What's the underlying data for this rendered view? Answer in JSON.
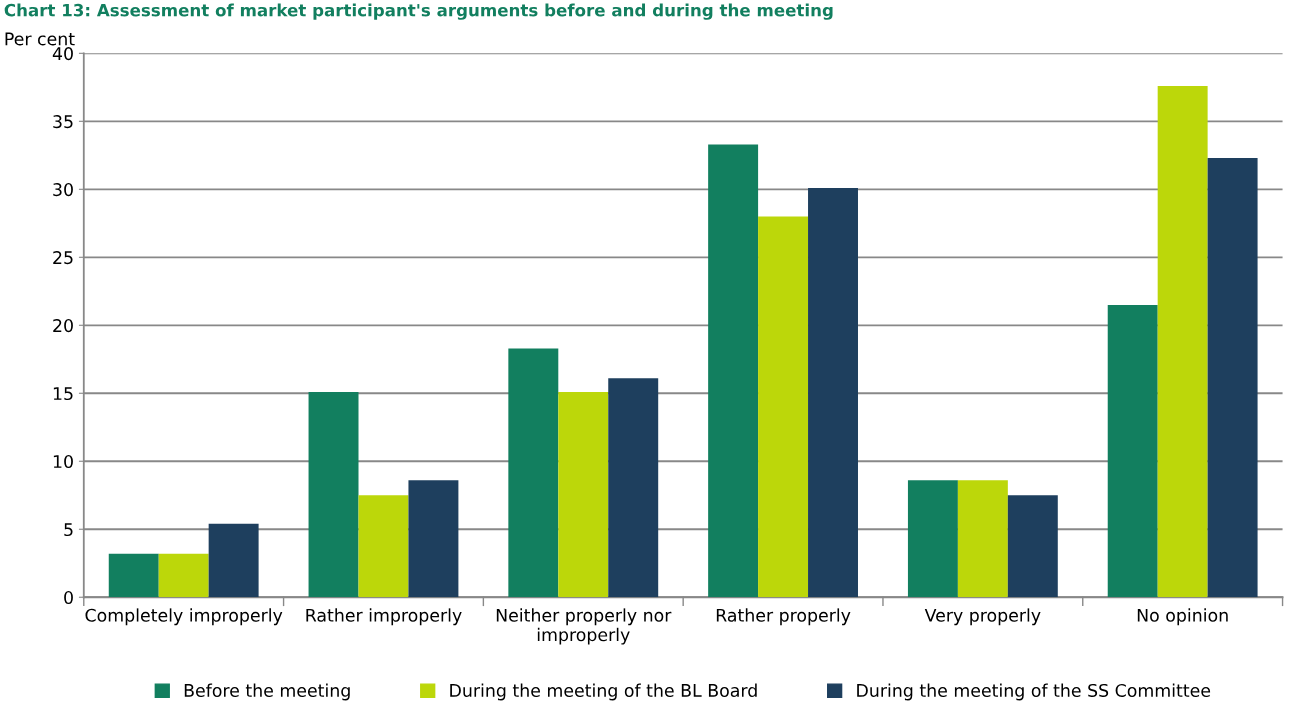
{
  "chart_data": {
    "type": "bar",
    "title": "Chart 13: Assessment of market participant's arguments before and during the meeting",
    "ylabel": "Per cent",
    "categories": [
      "Completely improperly",
      "Rather improperly",
      "Neither properly nor\nimproperly",
      "Rather properly",
      "Very properly",
      "No opinion"
    ],
    "series": [
      {
        "name": "Before the meeting",
        "color": "#127f5f",
        "values": [
          3.2,
          15.1,
          18.3,
          33.3,
          8.6,
          21.5
        ]
      },
      {
        "name": "During the meeting of the BL Board",
        "color": "#bcd70a",
        "values": [
          3.2,
          7.5,
          15.1,
          28.0,
          8.6,
          37.6
        ]
      },
      {
        "name": "During the meeting of the SS Committee",
        "color": "#1e3f5e",
        "values": [
          5.4,
          8.6,
          16.1,
          30.1,
          7.5,
          32.3
        ]
      }
    ],
    "ylim": [
      0,
      40
    ],
    "yticks": [
      0,
      5,
      10,
      15,
      20,
      25,
      30,
      35,
      40
    ],
    "grid": "y",
    "legend": "bottom"
  }
}
